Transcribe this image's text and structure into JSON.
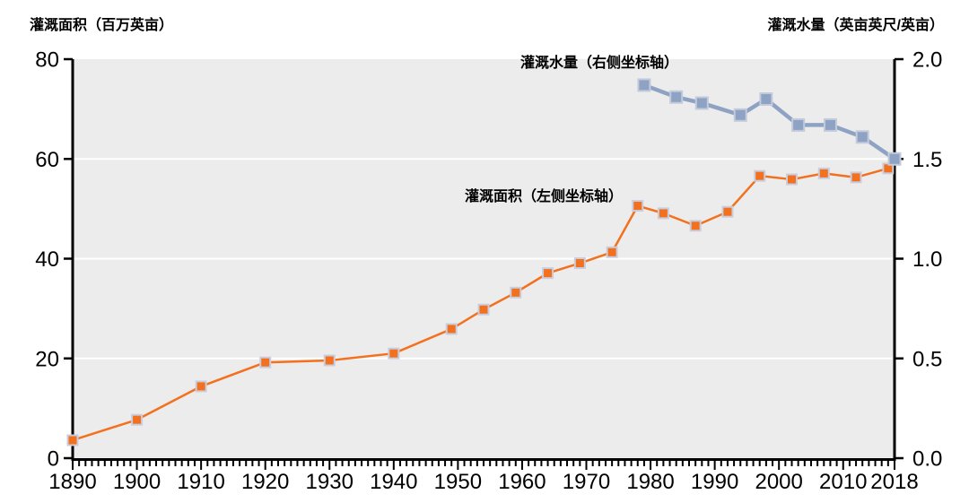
{
  "page": {
    "background": "#ffffff",
    "description_labels": {
      "left_axis_title": "灌溉面积（百万英亩）",
      "right_axis_title": "灌溉水量（英亩英尺/英亩）"
    }
  },
  "chart_data": {
    "type": "line",
    "title": "",
    "plot_background": "#ececec",
    "axis_color": "#000000",
    "text_color": "#000000",
    "gridlines": {
      "color": "#ffffff",
      "at_left_values": [
        20,
        40,
        60
      ]
    },
    "x_axis": {
      "range": [
        1890,
        2018
      ],
      "major_ticks": [
        1890,
        1900,
        1910,
        1920,
        1930,
        1940,
        1950,
        1960,
        1970,
        1980,
        1990,
        2000,
        2010,
        2018
      ],
      "minor_tick_step": 1
    },
    "left_axis": {
      "title": "灌溉面积（百万英亩）",
      "range": [
        0,
        80
      ],
      "ticks": [
        {
          "value": 0,
          "label": "0"
        },
        {
          "value": 20,
          "label": "20"
        },
        {
          "value": 40,
          "label": "40"
        },
        {
          "value": 60,
          "label": "60"
        },
        {
          "value": 80,
          "label": "80"
        }
      ]
    },
    "right_axis": {
      "title": "灌溉水量（英亩英尺/英亩）",
      "range": [
        0,
        2
      ],
      "ticks": [
        {
          "value": 0.0,
          "label": "0.0"
        },
        {
          "value": 0.5,
          "label": "0.5"
        },
        {
          "value": 1.0,
          "label": "1.0"
        },
        {
          "value": 1.5,
          "label": "1.5"
        },
        {
          "value": 2.0,
          "label": "2.0"
        }
      ]
    },
    "series": [
      {
        "name": "灌溉面积",
        "label": "灌溉面积（左侧坐标轴）",
        "axis": "left",
        "color": "#f3701e",
        "marker": "square",
        "marker_border": "#c9cede",
        "marker_size": 13,
        "line_width": 2.5,
        "x": [
          1890,
          1900,
          1910,
          1920,
          1930,
          1940,
          1949,
          1954,
          1959,
          1964,
          1969,
          1974,
          1978,
          1982,
          1987,
          1992,
          1997,
          2002,
          2007,
          2012,
          2017
        ],
        "y": [
          3.6,
          7.7,
          14.4,
          19.2,
          19.6,
          21.0,
          25.9,
          29.8,
          33.2,
          37.1,
          39.1,
          41.3,
          50.6,
          49.1,
          46.6,
          49.4,
          56.6,
          55.9,
          57.1,
          56.3,
          58.1
        ]
      },
      {
        "name": "灌溉水量",
        "label": "灌溉水量（右侧坐标轴）",
        "axis": "right",
        "color": "#8ea3c3",
        "marker": "square",
        "marker_border": "#c3cadb",
        "marker_size": 15,
        "line_width": 4.5,
        "x": [
          1979,
          1984,
          1988,
          1994,
          1998,
          2003,
          2008,
          2013,
          2018
        ],
        "y": [
          1.87,
          1.81,
          1.78,
          1.72,
          1.8,
          1.67,
          1.67,
          1.61,
          1.5
        ]
      }
    ],
    "legend_position": "none",
    "annotations": [
      {
        "text": "灌溉水量（右侧坐标轴）",
        "series": "灌溉水量"
      },
      {
        "text": "灌溉面积（左侧坐标轴）",
        "series": "灌溉面积"
      }
    ]
  }
}
